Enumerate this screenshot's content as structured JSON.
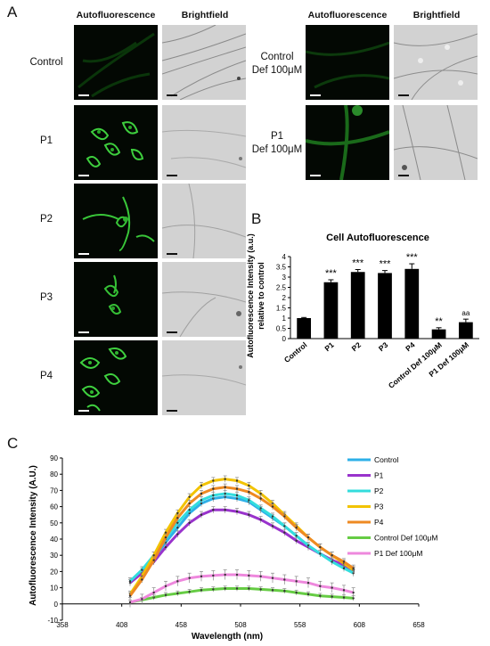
{
  "panelA": {
    "letter": "A",
    "col_autofluorescence": "Autofluorescence",
    "col_brightfield": "Brightfield",
    "rows_left": [
      "Control",
      "P1",
      "P2",
      "P3",
      "P4"
    ],
    "rows_right": [
      {
        "line1": "Control",
        "line2": "Def 100μM"
      },
      {
        "line1": "P1",
        "line2": "Def 100μM"
      }
    ]
  },
  "panelB": {
    "letter": "B",
    "chart_data": {
      "type": "bar",
      "title": "Cell Autofluorescence",
      "ylabel": "Autofluorescence Intensity (a.u.) relative to control",
      "ylabel_line1": "Autofluorescence Intensity (a.u.)",
      "ylabel_line2": "relative to control",
      "xlabel": "",
      "ylim": [
        0,
        4
      ],
      "yticks": [
        0,
        0.5,
        1,
        1.5,
        2,
        2.5,
        3,
        3.5,
        4
      ],
      "ytick_labels": [
        "0",
        "0.5",
        "1",
        "1.5",
        "2",
        "2.5",
        "3",
        "3.5",
        "4"
      ],
      "categories": [
        "Control",
        "P1",
        "P2",
        "P3",
        "P4",
        "Control Def 100μM",
        "P1 Def 100μM"
      ],
      "values": [
        1.0,
        2.75,
        3.25,
        3.2,
        3.4,
        0.45,
        0.8
      ],
      "errors": [
        0.03,
        0.12,
        0.12,
        0.12,
        0.25,
        0.08,
        0.15
      ],
      "annotations": [
        "",
        "***",
        "***",
        "***",
        "***",
        "**",
        "aa"
      ],
      "bar_color": "#000000"
    }
  },
  "panelC": {
    "letter": "C",
    "chart_data": {
      "type": "line",
      "title": "",
      "xlabel": "Wavelength (nm)",
      "ylabel": "Autofluorescence Intensity (A.U.)",
      "xlim": [
        358,
        658
      ],
      "ylim": [
        -10,
        90
      ],
      "xticks": [
        358,
        408,
        458,
        508,
        558,
        608,
        658
      ],
      "yticks": [
        -10,
        0,
        10,
        20,
        30,
        40,
        50,
        60,
        70,
        80,
        90
      ],
      "x": [
        415,
        425,
        435,
        445,
        455,
        465,
        475,
        485,
        495,
        505,
        515,
        525,
        535,
        545,
        555,
        565,
        575,
        585,
        595,
        603
      ],
      "legend_position": "right",
      "series": [
        {
          "name": "Control",
          "color": "#2eb0e8",
          "values": [
            14,
            20,
            28,
            38,
            47,
            56,
            62,
            65,
            66,
            65,
            63,
            58,
            53,
            48,
            42,
            36,
            31,
            27,
            23,
            20
          ],
          "err": 2
        },
        {
          "name": "P1",
          "color": "#9933cc",
          "values": [
            13,
            19,
            26,
            35,
            43,
            50,
            55,
            58,
            58,
            57,
            55,
            52,
            48,
            44,
            39,
            35,
            31,
            27,
            24,
            21
          ],
          "err": 2
        },
        {
          "name": "P2",
          "color": "#33dddd",
          "values": [
            14,
            21,
            30,
            40,
            50,
            58,
            64,
            67,
            68,
            67,
            64,
            59,
            54,
            48,
            42,
            36,
            31,
            26,
            22,
            19
          ],
          "err": 2
        },
        {
          "name": "P3",
          "color": "#f2c300",
          "values": [
            6,
            17,
            30,
            44,
            56,
            66,
            73,
            76,
            77,
            76,
            73,
            68,
            62,
            55,
            48,
            41,
            35,
            30,
            25,
            21
          ],
          "err": 2
        },
        {
          "name": "P4",
          "color": "#ee8a22",
          "values": [
            5,
            15,
            27,
            41,
            53,
            62,
            68,
            71,
            72,
            71,
            69,
            65,
            60,
            54,
            47,
            41,
            35,
            30,
            26,
            22
          ],
          "err": 2
        },
        {
          "name": "Control Def 100μM",
          "color": "#66cc44",
          "values": [
            1,
            2.5,
            4,
            5.5,
            6.5,
            7.5,
            8.5,
            9,
            9.5,
            9.5,
            9.5,
            9,
            8.5,
            8,
            7,
            6,
            5,
            4.5,
            4,
            3.5
          ],
          "err": 1.5
        },
        {
          "name": "P1 Def 100μM",
          "color": "#ee88dd",
          "values": [
            1,
            3,
            7,
            11,
            14,
            16,
            17,
            17.5,
            18,
            18,
            17.5,
            17,
            16,
            15,
            14,
            13,
            11,
            10,
            8.5,
            7
          ],
          "err": 3
        }
      ]
    }
  }
}
